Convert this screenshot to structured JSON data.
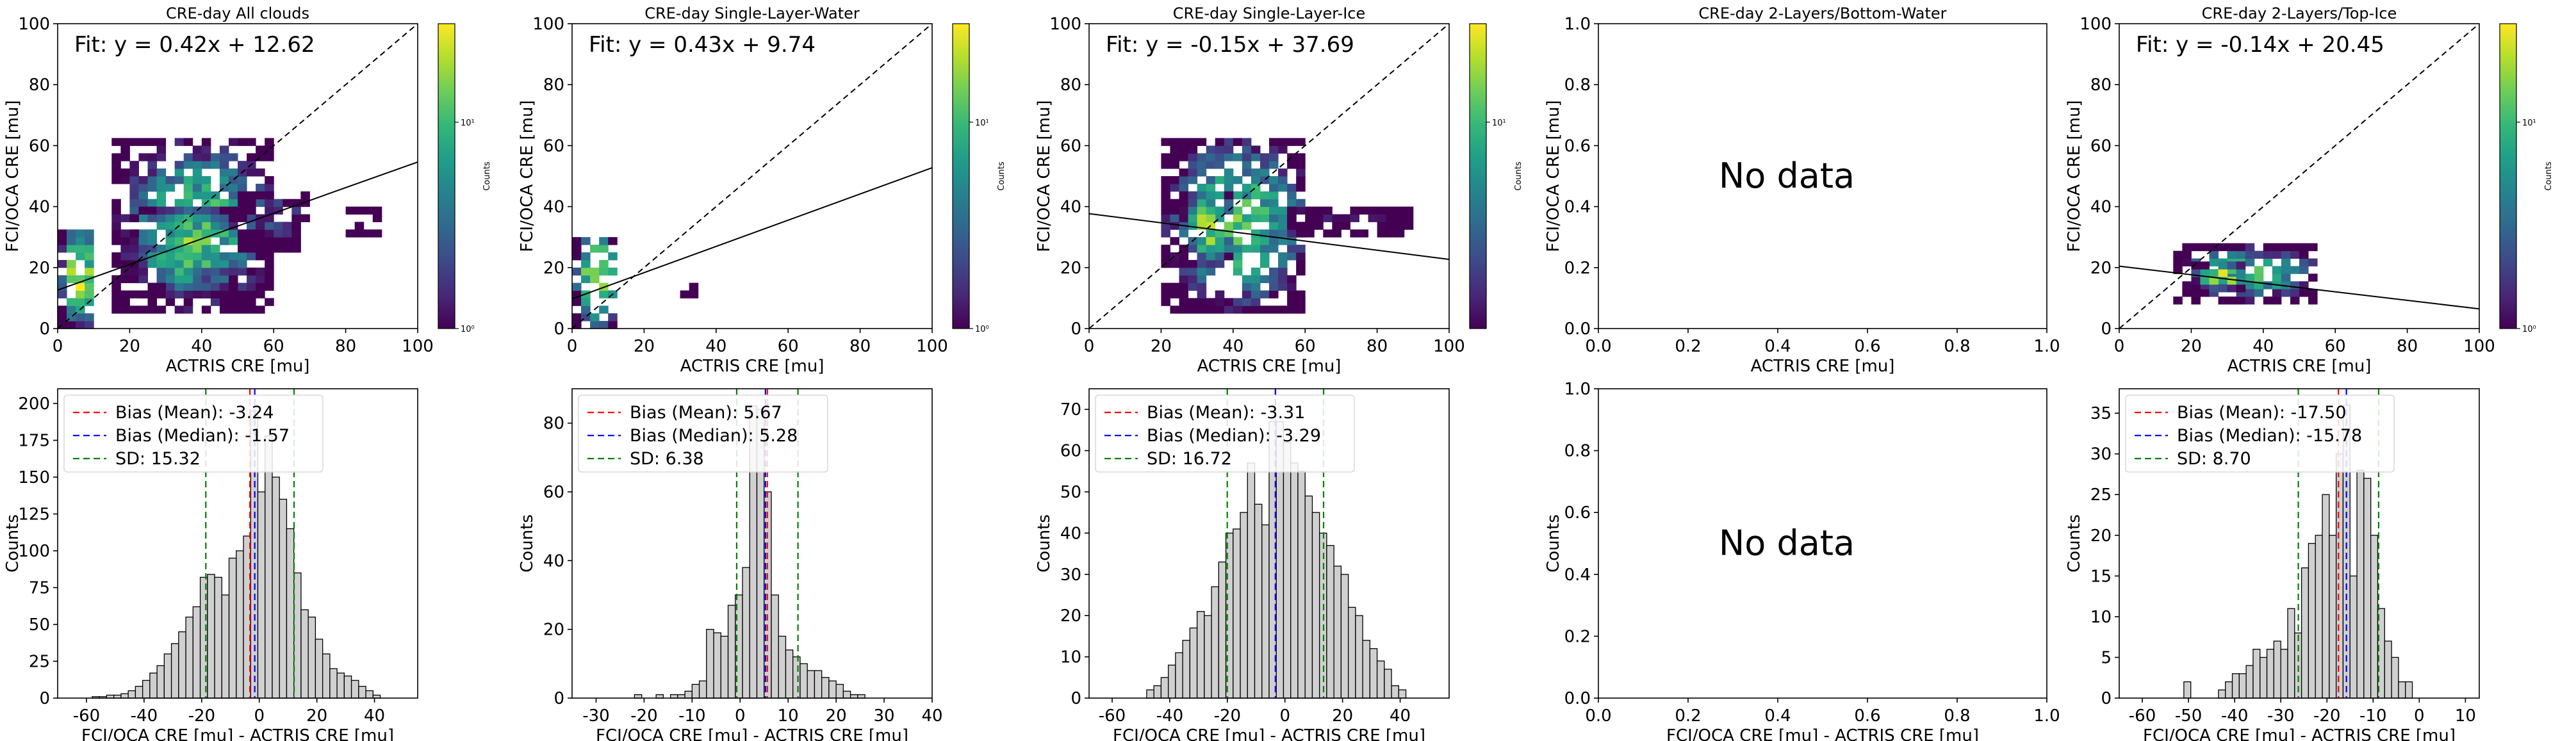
{
  "colors": {
    "mean_line": "#ff0000",
    "median_line": "#0000ff",
    "sd_line": "#008000",
    "hist_fill": "#d0d0d0",
    "hist_edge": "#000000",
    "colormap": "viridis"
  },
  "chart_data": [
    {
      "type": "heatmap",
      "title": "CRE-day All clouds",
      "xlabel": "ACTRIS CRE [mu]",
      "ylabel": "FCI/OCA CRE [mu]",
      "xlim": [
        0,
        100
      ],
      "ylim": [
        0,
        100
      ],
      "xticks": [
        "0",
        "20",
        "40",
        "60",
        "80",
        "100"
      ],
      "yticks": [
        "0",
        "20",
        "40",
        "60",
        "80",
        "100"
      ],
      "fit": {
        "label": "Fit: y = 0.42x + 12.62",
        "slope": 0.42,
        "intercept": 12.62
      },
      "one_to_one": true,
      "colorbar": {
        "label": "Counts",
        "scale": "log",
        "range": [
          1,
          30
        ],
        "ticks": [
          "10⁰",
          "10¹"
        ]
      },
      "regions": [
        {
          "x": [
            0,
            10
          ],
          "y": [
            0,
            32
          ],
          "max": 30
        },
        {
          "x": [
            15,
            60
          ],
          "y": [
            5,
            62
          ],
          "max": 12
        },
        {
          "x": [
            20,
            50
          ],
          "y": [
            10,
            40
          ],
          "max": 18
        },
        {
          "x": [
            50,
            70
          ],
          "y": [
            25,
            45
          ],
          "max": 3
        },
        {
          "x": [
            80,
            90
          ],
          "y": [
            30,
            40
          ],
          "max": 2
        }
      ]
    },
    {
      "type": "heatmap",
      "title": "CRE-day Single-Layer-Water",
      "xlabel": "ACTRIS CRE [mu]",
      "ylabel": "FCI/OCA CRE [mu]",
      "xlim": [
        0,
        100
      ],
      "ylim": [
        0,
        100
      ],
      "xticks": [
        "0",
        "20",
        "40",
        "60",
        "80",
        "100"
      ],
      "yticks": [
        "0",
        "20",
        "40",
        "60",
        "80",
        "100"
      ],
      "fit": {
        "label": "Fit: y = 0.43x + 9.74",
        "slope": 0.43,
        "intercept": 9.74
      },
      "one_to_one": true,
      "colorbar": {
        "label": "Counts",
        "scale": "log",
        "range": [
          1,
          30
        ],
        "ticks": [
          "10⁰",
          "10¹"
        ]
      },
      "regions": [
        {
          "x": [
            0,
            12
          ],
          "y": [
            0,
            30
          ],
          "max": 30
        },
        {
          "x": [
            30,
            35
          ],
          "y": [
            10,
            15
          ],
          "max": 1
        }
      ]
    },
    {
      "type": "heatmap",
      "title": "CRE-day Single-Layer-Ice",
      "xlabel": "ACTRIS CRE [mu]",
      "ylabel": "FCI/OCA CRE [mu]",
      "xlim": [
        0,
        100
      ],
      "ylim": [
        0,
        100
      ],
      "xticks": [
        "0",
        "20",
        "40",
        "60",
        "80",
        "100"
      ],
      "yticks": [
        "0",
        "20",
        "40",
        "60",
        "80",
        "100"
      ],
      "fit": {
        "label": "Fit: y = -0.15x + 37.69",
        "slope": -0.15,
        "intercept": 37.69
      },
      "one_to_one": true,
      "colorbar": {
        "label": "Counts",
        "scale": "log",
        "range": [
          1,
          30
        ],
        "ticks": [
          "10¹"
        ]
      },
      "regions": [
        {
          "x": [
            20,
            60
          ],
          "y": [
            5,
            62
          ],
          "max": 14
        },
        {
          "x": [
            25,
            40
          ],
          "y": [
            20,
            45
          ],
          "max": 25
        },
        {
          "x": [
            55,
            90
          ],
          "y": [
            30,
            40
          ],
          "max": 2
        }
      ]
    },
    {
      "type": "heatmap",
      "title": "CRE-day 2-Layers/Bottom-Water",
      "xlabel": "ACTRIS CRE [mu]",
      "ylabel": "FCI/OCA CRE [mu]",
      "xlim": [
        0,
        1
      ],
      "ylim": [
        0,
        1
      ],
      "xticks": [
        "0.0",
        "0.2",
        "0.4",
        "0.6",
        "0.8",
        "1.0"
      ],
      "yticks": [
        "0.0",
        "0.2",
        "0.4",
        "0.6",
        "0.8",
        "1.0"
      ],
      "no_data": "No data"
    },
    {
      "type": "heatmap",
      "title": "CRE-day 2-Layers/Top-Ice",
      "xlabel": "ACTRIS CRE [mu]",
      "ylabel": "FCI/OCA CRE [mu]",
      "xlim": [
        0,
        100
      ],
      "ylim": [
        0,
        100
      ],
      "xticks": [
        "0",
        "20",
        "40",
        "60",
        "80",
        "100"
      ],
      "yticks": [
        "0",
        "20",
        "40",
        "60",
        "80",
        "100"
      ],
      "fit": {
        "label": "Fit: y = -0.14x + 20.45",
        "slope": -0.14,
        "intercept": 20.45
      },
      "one_to_one": true,
      "colorbar": {
        "label": "Counts",
        "scale": "log",
        "range": [
          1,
          30
        ],
        "ticks": [
          "10⁰",
          "10¹"
        ]
      },
      "regions": [
        {
          "x": [
            15,
            55
          ],
          "y": [
            8,
            26
          ],
          "max": 12
        },
        {
          "x": [
            20,
            35
          ],
          "y": [
            12,
            20
          ],
          "max": 28
        }
      ]
    },
    {
      "type": "bar",
      "subtype": "histogram",
      "xlabel": "FCI/OCA CRE [mu] - ACTRIS CRE [mu]",
      "ylabel": "Counts",
      "xlim": [
        -70,
        55
      ],
      "ylim": [
        0,
        210
      ],
      "xticks": [
        -60,
        -40,
        -20,
        0,
        20,
        40
      ],
      "yticks": [
        0,
        25,
        50,
        75,
        100,
        125,
        150,
        175,
        200
      ],
      "bin_start": -58,
      "bin_width": 2.5,
      "counts": [
        1,
        1,
        2,
        2,
        3,
        5,
        8,
        12,
        17,
        22,
        30,
        37,
        45,
        55,
        62,
        82,
        84,
        82,
        70,
        95,
        100,
        110,
        195,
        140,
        178,
        150,
        135,
        115,
        85,
        60,
        55,
        40,
        30,
        20,
        17,
        15,
        12,
        8,
        5,
        2
      ],
      "mean": -3.24,
      "median": -1.57,
      "sd": 15.32,
      "legend": {
        "position": "top-left",
        "items": [
          "Bias (Mean): -3.24",
          "Bias (Median): -1.57",
          "SD: 15.32"
        ]
      }
    },
    {
      "type": "bar",
      "subtype": "histogram",
      "xlabel": "FCI/OCA CRE [mu] - ACTRIS CRE [mu]",
      "ylabel": "Counts",
      "xlim": [
        -35,
        40
      ],
      "ylim": [
        0,
        90
      ],
      "xticks": [
        -30,
        -20,
        -10,
        0,
        10,
        20,
        30,
        40
      ],
      "yticks": [
        0,
        20,
        40,
        60,
        80
      ],
      "bin_start": -22,
      "bin_width": 1.5,
      "counts": [
        1,
        0,
        0,
        1,
        0,
        1,
        1,
        2,
        4,
        5,
        20,
        19,
        18,
        27,
        30,
        38,
        85,
        84,
        60,
        30,
        18,
        14,
        12,
        10,
        8,
        8,
        6,
        5,
        4,
        2,
        1,
        1
      ],
      "mean": 5.67,
      "median": 5.28,
      "sd": 6.38,
      "legend": {
        "position": "top-left",
        "items": [
          "Bias (Mean): 5.67",
          "Bias (Median): 5.28",
          "SD: 6.38"
        ]
      }
    },
    {
      "type": "bar",
      "subtype": "histogram",
      "xlabel": "FCI/OCA CRE [mu] - ACTRIS CRE [mu]",
      "ylabel": "Counts",
      "xlim": [
        -68,
        57
      ],
      "ylim": [
        0,
        75
      ],
      "xticks": [
        -60,
        -40,
        -20,
        0,
        20,
        40
      ],
      "yticks": [
        0,
        10,
        20,
        30,
        40,
        50,
        60,
        70
      ],
      "bin_start": -48,
      "bin_width": 2.5,
      "counts": [
        2,
        3,
        5,
        8,
        11,
        14,
        17,
        21,
        20,
        27,
        33,
        40,
        41,
        45,
        57,
        47,
        42,
        67,
        67,
        62,
        57,
        55,
        49,
        45,
        40,
        37,
        32,
        30,
        22,
        20,
        14,
        12,
        9,
        7,
        3,
        2
      ],
      "mean": -3.31,
      "median": -3.29,
      "sd": 16.72,
      "legend": {
        "position": "top-left",
        "items": [
          "Bias (Mean): -3.31",
          "Bias (Median): -3.29",
          "SD: 16.72"
        ]
      }
    },
    {
      "type": "bar",
      "subtype": "histogram",
      "xlabel": "FCI/OCA CRE [mu] - ACTRIS CRE [mu]",
      "ylabel": "Counts",
      "xlim": [
        0,
        1
      ],
      "ylim": [
        0,
        1
      ],
      "xticks": [
        "0.0",
        "0.2",
        "0.4",
        "0.6",
        "0.8",
        "1.0"
      ],
      "yticks": [
        "0.0",
        "0.2",
        "0.4",
        "0.6",
        "0.8",
        "1.0"
      ],
      "no_data": "No data"
    },
    {
      "type": "bar",
      "subtype": "histogram",
      "xlabel": "FCI/OCA CRE [mu] - ACTRIS CRE [mu]",
      "ylabel": "Counts",
      "xlim": [
        -65,
        13
      ],
      "ylim": [
        0,
        38
      ],
      "xticks": [
        -60,
        -50,
        -40,
        -30,
        -20,
        -10,
        0,
        10
      ],
      "yticks": [
        0,
        5,
        10,
        15,
        20,
        25,
        30,
        35
      ],
      "bin_start": -51,
      "bin_width": 1.5,
      "counts": [
        2,
        0,
        0,
        0,
        0,
        1,
        2,
        3,
        3,
        4,
        6,
        5,
        6,
        7,
        6,
        11,
        8,
        16,
        19,
        20,
        25,
        20,
        30,
        36,
        15,
        28,
        27,
        20,
        11,
        7,
        5,
        2,
        2
      ],
      "mean": -17.5,
      "median": -15.78,
      "sd": 8.7,
      "legend": {
        "position": "top-left",
        "items": [
          "Bias (Mean): -17.50",
          "Bias (Median): -15.78",
          "SD: 8.70"
        ]
      }
    }
  ]
}
